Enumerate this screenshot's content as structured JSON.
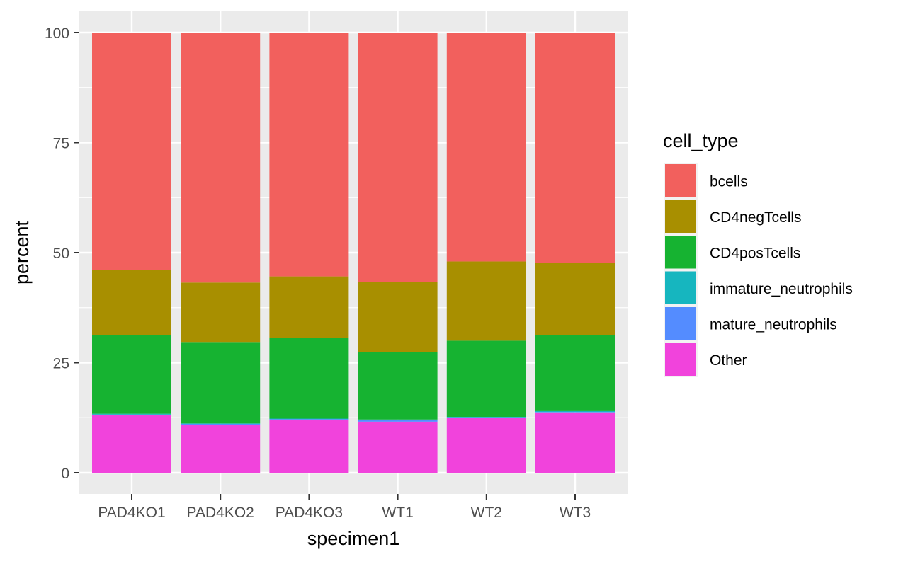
{
  "chart_data": {
    "type": "bar",
    "stacked": true,
    "title": "",
    "xlabel": "specimen1",
    "ylabel": "percent",
    "ylim": [
      0,
      100
    ],
    "yticks": [
      0,
      25,
      50,
      75,
      100
    ],
    "categories": [
      "PAD4KO1",
      "PAD4KO2",
      "PAD4KO3",
      "WT1",
      "WT2",
      "WT3"
    ],
    "series": [
      {
        "name": "Other",
        "color": "#F143DC",
        "values": [
          13.2,
          10.9,
          12.0,
          11.6,
          12.4,
          13.7
        ]
      },
      {
        "name": "mature_neutrophils",
        "color": "#548CFF",
        "values": [
          0.0,
          0.2,
          0.2,
          0.4,
          0.2,
          0.1
        ]
      },
      {
        "name": "immature_neutrophils",
        "color": "#16B6BF",
        "values": [
          0.2,
          0.1,
          0.1,
          0.1,
          0.1,
          0.2
        ]
      },
      {
        "name": "CD4posTcells",
        "color": "#16B331",
        "values": [
          17.8,
          18.5,
          18.3,
          15.3,
          17.3,
          17.3
        ]
      },
      {
        "name": "CD4negTcells",
        "color": "#A88F00",
        "values": [
          14.8,
          13.5,
          14.0,
          15.9,
          18.0,
          16.3
        ]
      },
      {
        "name": "bcells",
        "color": "#F2605D",
        "values": [
          54.0,
          56.8,
          55.4,
          56.7,
          52.0,
          52.4
        ]
      }
    ],
    "legend": {
      "title": "cell_type",
      "position": "right",
      "items": [
        "bcells",
        "CD4negTcells",
        "CD4posTcells",
        "immature_neutrophils",
        "mature_neutrophils",
        "Other"
      ]
    },
    "grid": true,
    "panel_background": "#EBEBEB",
    "grid_color": "#FFFFFF"
  }
}
